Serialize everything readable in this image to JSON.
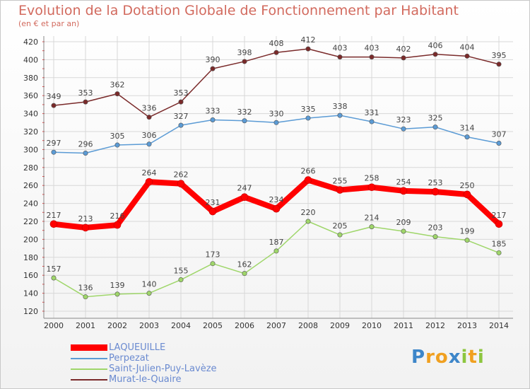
{
  "header": {
    "title": "Evolution de la Dotation Globale de Fonctionnement par Habitant",
    "subtitle": "(en € et par an)"
  },
  "logo": {
    "text": "Proxiti",
    "letters": [
      {
        "ch": "P",
        "color": "#3d86c9"
      },
      {
        "ch": "r",
        "color": "#f0a020"
      },
      {
        "ch": "o",
        "color": "#f0a020"
      },
      {
        "ch": "x",
        "color": "#3d86c9"
      },
      {
        "ch": "i",
        "color": "#8dc63f"
      },
      {
        "ch": "t",
        "color": "#f0a020"
      },
      {
        "ch": "i",
        "color": "#8dc63f"
      }
    ]
  },
  "chart_data": {
    "type": "line",
    "x": [
      2000,
      2001,
      2002,
      2003,
      2004,
      2005,
      2006,
      2007,
      2008,
      2009,
      2010,
      2011,
      2012,
      2013,
      2014
    ],
    "ylim": [
      120,
      420
    ],
    "yticks": [
      120,
      140,
      160,
      180,
      200,
      220,
      240,
      260,
      280,
      300,
      320,
      340,
      360,
      380,
      400,
      420
    ],
    "grid": true,
    "legend_position": "bottom-left",
    "series": [
      {
        "name": "Murat-le-Quaire",
        "color": "#7a2a2a",
        "values": [
          349,
          353,
          362,
          336,
          353,
          390,
          398,
          408,
          412,
          403,
          403,
          402,
          406,
          404,
          395
        ]
      },
      {
        "name": "Perpezat",
        "color": "#5b9bd5",
        "values": [
          297,
          296,
          305,
          306,
          327,
          333,
          332,
          330,
          335,
          338,
          331,
          323,
          325,
          314,
          307
        ]
      },
      {
        "name": "Saint-Julien-Puy-Lavèze",
        "color": "#9fd66a",
        "values": [
          157,
          136,
          139,
          140,
          155,
          173,
          162,
          187,
          220,
          205,
          214,
          209,
          203,
          199,
          185
        ]
      },
      {
        "name": "LAQUEUILLE",
        "color": "#ff0000",
        "values": [
          217,
          213,
          216,
          264,
          262,
          231,
          247,
          234,
          266,
          255,
          258,
          254,
          253,
          250,
          217
        ]
      }
    ],
    "legend_order": [
      "LAQUEUILLE",
      "Perpezat",
      "Saint-Julien-Puy-Lavèze",
      "Murat-le-Quaire"
    ]
  }
}
